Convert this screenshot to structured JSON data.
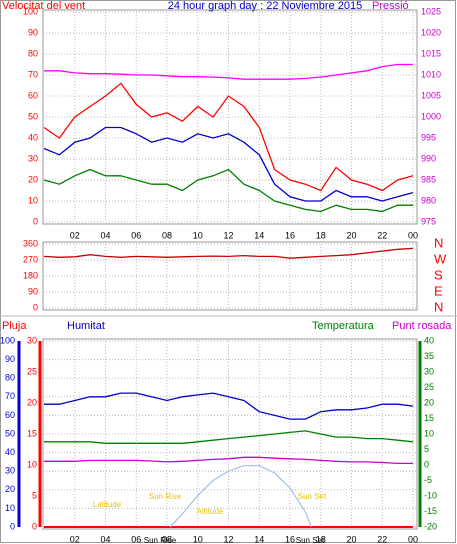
{
  "chart_data": [
    {
      "type": "line",
      "title": "24 hour graph day : 22 Noviembre 2015",
      "ylabel": "Velocitat del vent",
      "y2label": "Pressió",
      "x": [
        0,
        1,
        2,
        3,
        4,
        5,
        6,
        7,
        8,
        9,
        10,
        11,
        12,
        13,
        14,
        15,
        16,
        17,
        18,
        19,
        20,
        21,
        22,
        23,
        24
      ],
      "xlim": [
        0,
        24
      ],
      "xticks": [
        {
          "value": 2,
          "label": "02"
        },
        {
          "value": 4,
          "label": "04"
        },
        {
          "value": 6,
          "label": "06"
        },
        {
          "value": 8,
          "label": "08"
        },
        10,
        12,
        14,
        16,
        18,
        20,
        22,
        {
          "value": 24,
          "label": "00"
        }
      ],
      "ylim": [
        0,
        100
      ],
      "yticks": [
        0,
        10,
        20,
        30,
        40,
        50,
        60,
        70,
        80,
        90,
        100
      ],
      "y2lim": [
        975,
        1025
      ],
      "y2ticks": [
        975,
        980,
        985,
        990,
        995,
        1000,
        1005,
        1010,
        1015,
        1020,
        1025
      ],
      "ycolor": "#ff0000",
      "y2color": "#cc00cc",
      "titlecolor": "#0000cc",
      "grid": true,
      "series": [
        {
          "color": "#ff0000",
          "values": [
            45,
            40,
            50,
            55,
            60,
            66,
            56,
            50,
            52,
            48,
            55,
            50,
            60,
            55,
            45,
            25,
            20,
            18,
            15,
            26,
            20,
            18,
            15,
            20,
            22
          ]
        },
        {
          "color": "#0000cc",
          "values": [
            35,
            32,
            38,
            40,
            45,
            45,
            42,
            38,
            40,
            38,
            42,
            40,
            42,
            38,
            32,
            18,
            12,
            10,
            10,
            15,
            12,
            12,
            10,
            12,
            14
          ]
        },
        {
          "color": "#008000",
          "values": [
            20,
            18,
            22,
            25,
            22,
            22,
            20,
            18,
            18,
            15,
            20,
            22,
            25,
            18,
            15,
            10,
            8,
            6,
            5,
            8,
            6,
            6,
            5,
            8,
            8
          ]
        },
        {
          "color": "#ff00ff",
          "axis": "y2",
          "values": [
            1011,
            1011,
            1010.5,
            1010.3,
            1010.3,
            1010.2,
            1010,
            1010,
            1009.8,
            1009.6,
            1009.6,
            1009.5,
            1009.3,
            1009,
            1009,
            1009,
            1009,
            1009.2,
            1009.5,
            1010,
            1010.5,
            1011,
            1012,
            1012.5,
            1012.5
          ]
        }
      ]
    },
    {
      "type": "line",
      "x": [
        0,
        1,
        2,
        3,
        4,
        5,
        6,
        7,
        8,
        9,
        10,
        11,
        12,
        13,
        14,
        15,
        16,
        17,
        18,
        19,
        20,
        21,
        22,
        23,
        24
      ],
      "xlim": [
        0,
        24
      ],
      "ylim": [
        0,
        360
      ],
      "yticks": [
        0,
        90,
        180,
        270,
        360
      ],
      "y2lim": [
        0,
        360
      ],
      "y2ticks": [
        {
          "value": 360,
          "label": "N"
        },
        {
          "value": 270,
          "label": "W"
        },
        {
          "value": 180,
          "label": "S"
        },
        {
          "value": 90,
          "label": "E"
        },
        {
          "value": 0,
          "label": "N"
        }
      ],
      "ycolor": "#ff0000",
      "y2color": "#ff0000",
      "grid": true,
      "series": [
        {
          "color": "#cc0000",
          "values": [
            290,
            285,
            288,
            300,
            290,
            285,
            290,
            288,
            285,
            288,
            290,
            292,
            290,
            295,
            290,
            290,
            280,
            285,
            290,
            295,
            300,
            310,
            320,
            330,
            335
          ]
        }
      ]
    },
    {
      "type": "line",
      "x": [
        0,
        1,
        2,
        3,
        4,
        5,
        6,
        7,
        8,
        9,
        10,
        11,
        12,
        13,
        14,
        15,
        16,
        17,
        18,
        19,
        20,
        21,
        22,
        23,
        24
      ],
      "xlim": [
        0,
        24
      ],
      "xticks": [
        {
          "value": 2,
          "label": "02"
        },
        {
          "value": 4,
          "label": "04"
        },
        {
          "value": 6,
          "label": "06"
        },
        {
          "value": 8,
          "label": "08"
        },
        10,
        12,
        14,
        16,
        18,
        20,
        22,
        {
          "value": 24,
          "label": "00"
        }
      ],
      "ylim": [
        0,
        100
      ],
      "yticks": [
        0,
        10,
        20,
        30,
        40,
        50,
        60,
        70,
        80,
        90,
        100
      ],
      "y2lim": [
        -20,
        40
      ],
      "y2ticks": [
        -20,
        -15,
        -10,
        -5,
        0,
        5,
        10,
        15,
        20,
        25,
        30,
        35,
        40
      ],
      "y3lim": [
        0,
        30
      ],
      "y3ticks": [
        0,
        5,
        10,
        15,
        20,
        25,
        30
      ],
      "ycolor": "#0000cc",
      "y2color": "#008000",
      "y3color": "#ff0000",
      "grid": true,
      "annotations": [
        "Latitude",
        "Altitude",
        "Sun Rise",
        "Sun Set",
        "Sun Rise",
        "Sun Set"
      ],
      "series": [
        {
          "name": "Pluja",
          "color": "#ff0000",
          "axis": "y3",
          "values": [
            0,
            0,
            0,
            0,
            0,
            0,
            0,
            0,
            0,
            0,
            0,
            0,
            0,
            0,
            0,
            0,
            0,
            0,
            0,
            0,
            0,
            0,
            0,
            0,
            0
          ]
        },
        {
          "name": "Humitat",
          "color": "#0000cc",
          "values": [
            66,
            66,
            68,
            70,
            70,
            72,
            72,
            70,
            68,
            70,
            71,
            72,
            70,
            68,
            62,
            60,
            58,
            58,
            62,
            63,
            63,
            64,
            66,
            66,
            65
          ]
        },
        {
          "name": "Temperatura",
          "color": "#008000",
          "axis": "y2",
          "values": [
            7.5,
            7.5,
            7.5,
            7.5,
            7,
            7,
            7,
            7,
            7,
            7,
            7.5,
            8,
            8.5,
            9,
            9.5,
            10,
            10.5,
            11,
            10,
            9,
            9,
            8.5,
            8.5,
            8,
            7.5
          ]
        },
        {
          "name": "Punt rosada",
          "color": "#cc00cc",
          "axis": "y2",
          "values": [
            1.2,
            1.2,
            1.2,
            1.5,
            1.5,
            1.5,
            1.5,
            1.3,
            1,
            1.2,
            1.5,
            1.8,
            2,
            2.5,
            2.5,
            2.2,
            2,
            1.8,
            1.5,
            1.2,
            1,
            1,
            0.8,
            0.5,
            0.5
          ]
        },
        {
          "color": "#a8c4e8",
          "x": [
            8.2,
            9,
            10,
            11,
            12,
            13,
            14,
            15,
            16,
            17,
            17.4
          ],
          "values": [
            0,
            7,
            17,
            25,
            30,
            33,
            33,
            29,
            21,
            8,
            0
          ]
        }
      ]
    }
  ]
}
